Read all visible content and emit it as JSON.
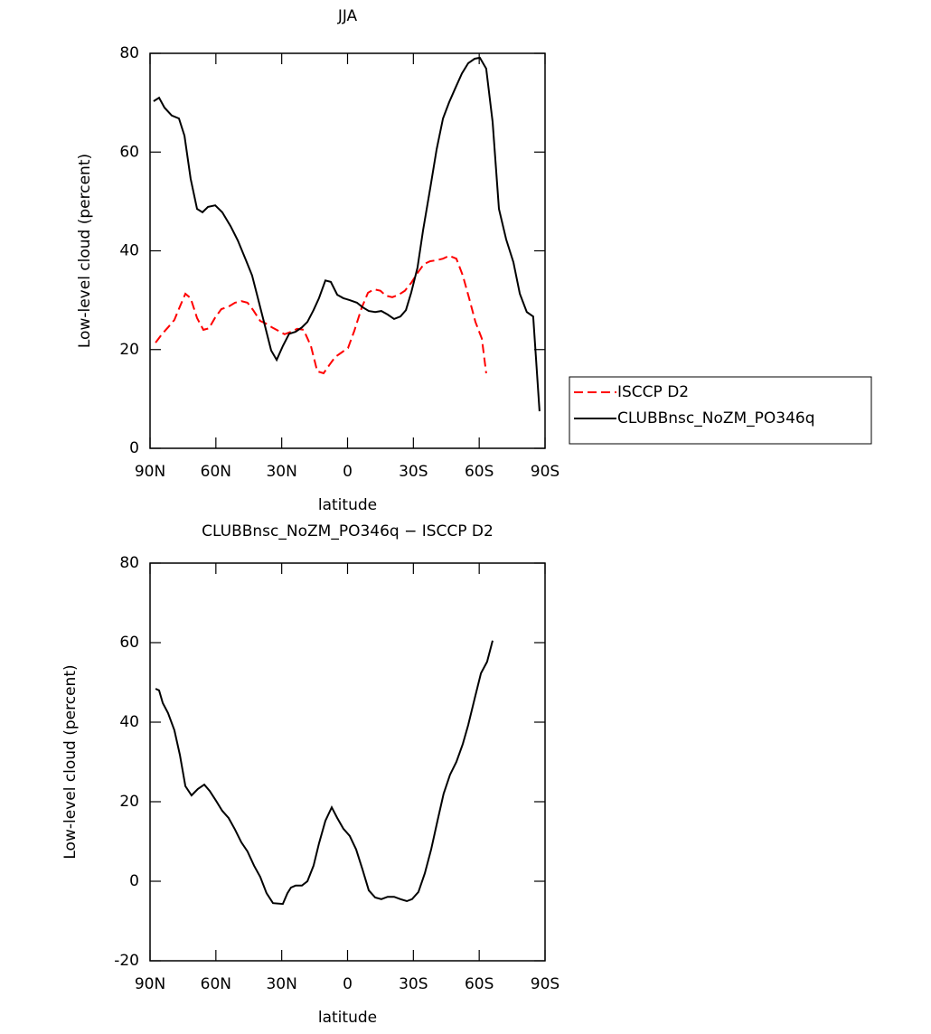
{
  "chart_data": [
    {
      "type": "line",
      "title": "JJA",
      "xlabel": "latitude",
      "ylabel": "Low-level cloud (percent)",
      "xlim": [
        90,
        -90
      ],
      "xticks": [
        {
          "value": 90,
          "label": "90N"
        },
        {
          "value": 60,
          "label": "60N"
        },
        {
          "value": 30,
          "label": "30N"
        },
        0,
        {
          "value": -30,
          "label": "30S"
        },
        {
          "value": -60,
          "label": "60S"
        },
        {
          "value": -90,
          "label": "90S"
        }
      ],
      "ylim": [
        0,
        80
      ],
      "yticks": [
        0,
        20,
        40,
        60,
        80
      ],
      "legend": "right",
      "series": [
        {
          "name": "ISCCP D2",
          "color": "#ff0000",
          "linestyle": "dashed",
          "x": [
            87.5,
            84.6,
            81.8,
            78.9,
            76.4,
            73.9,
            71.5,
            68.6,
            65.7,
            63.2,
            60.3,
            57.5,
            54.2,
            51.3,
            48.4,
            45.6,
            43.0,
            39.8,
            37.3,
            34.4,
            31.5,
            28.7,
            25.8,
            22.9,
            20.0,
            16.7,
            13.8,
            10.9,
            8.4,
            5.6,
            2.7,
            -0.2,
            -3.1,
            -6.4,
            -9.3,
            -12.1,
            -15.0,
            -17.5,
            -20.4,
            -23.3,
            -26.1,
            -29.0,
            -31.9,
            -34.8,
            -37.7,
            -40.6,
            -43.5,
            -46.3,
            -49.6,
            -52.5,
            -55.4,
            -58.3,
            -61.2,
            -63.2
          ],
          "values": [
            21.4,
            23.1,
            24.5,
            26,
            28.7,
            31.3,
            30.4,
            26.4,
            24,
            24.3,
            26.5,
            28.2,
            28.7,
            29.5,
            29.8,
            29.5,
            28,
            25.8,
            25.3,
            24.5,
            23.8,
            23.1,
            23.6,
            24.2,
            24,
            20.7,
            15.6,
            15.2,
            16.8,
            18.5,
            19.4,
            20.3,
            23.8,
            28.4,
            31.5,
            32.2,
            31.9,
            30.9,
            30.6,
            31.1,
            31.9,
            33.5,
            35.5,
            37.3,
            37.9,
            38.1,
            38.4,
            39,
            38.4,
            35,
            30.4,
            25.6,
            22.2,
            15.2
          ]
        },
        {
          "name": "CLUBBnsc_NoZM_PO346q",
          "color": "#000000",
          "linestyle": "solid",
          "x": [
            88.4,
            85.9,
            83.4,
            80.1,
            76.8,
            74.3,
            71.5,
            68.6,
            66.1,
            63.6,
            60.3,
            57.1,
            53.3,
            50.0,
            46.3,
            43.5,
            40.6,
            37.7,
            34.8,
            32.3,
            29.5,
            26.6,
            23.7,
            20.8,
            18.3,
            15.5,
            13.0,
            10.1,
            7.6,
            4.7,
            1.9,
            -1.0,
            -4.3,
            -6.8,
            -9.7,
            -12.6,
            -15.4,
            -18.3,
            -21.2,
            -24.1,
            -26.6,
            -29.0,
            -31.9,
            -34.4,
            -37.7,
            -40.6,
            -43.5,
            -46.3,
            -49.2,
            -52.1,
            -55.0,
            -57.9,
            -60.3,
            -63.2,
            -66.1,
            -69.0,
            -72.3,
            -75.6,
            -78.5,
            -81.7,
            -84.6,
            -87.5
          ],
          "values": [
            70.3,
            71,
            69,
            67.4,
            66.8,
            63.3,
            54.6,
            48.5,
            47.8,
            48.9,
            49.2,
            47.8,
            45,
            42.1,
            38.1,
            35,
            30,
            24.9,
            19.8,
            17.9,
            20.7,
            23.2,
            23.6,
            24.5,
            25.6,
            28,
            30.4,
            34,
            33.7,
            31.1,
            30.4,
            30,
            29.5,
            28.6,
            27.8,
            27.6,
            27.8,
            27.1,
            26.2,
            26.7,
            28,
            31.5,
            36.6,
            44.1,
            52.7,
            60.6,
            66.8,
            70.1,
            73,
            75.9,
            78,
            78.9,
            79.1,
            76.9,
            66.1,
            48.5,
            42.3,
            37.7,
            31.3,
            27.6,
            26.7,
            7.5
          ]
        }
      ]
    },
    {
      "type": "line",
      "title": "CLUBBnsc_NoZM_PO346q − ISCCP D2",
      "xlabel": "latitude",
      "ylabel": "Low-level cloud (percent)",
      "xlim": [
        90,
        -90
      ],
      "xticks": [
        {
          "value": 90,
          "label": "90N"
        },
        {
          "value": 60,
          "label": "60N"
        },
        {
          "value": 30,
          "label": "30N"
        },
        0,
        {
          "value": -30,
          "label": "30S"
        },
        {
          "value": -60,
          "label": "60S"
        },
        {
          "value": -90,
          "label": "90S"
        }
      ],
      "ylim": [
        -20,
        80
      ],
      "yticks": [
        -20,
        0,
        20,
        40,
        60,
        80
      ],
      "series": [
        {
          "color": "#000000",
          "linestyle": "solid",
          "x": [
            87.5,
            85.9,
            84.2,
            81.8,
            78.9,
            76.4,
            73.9,
            71.1,
            68.2,
            65.3,
            62.8,
            59.9,
            57.1,
            54.2,
            51.3,
            48.4,
            45.6,
            42.6,
            39.8,
            36.9,
            34.0,
            29.5,
            27.4,
            25.8,
            23.7,
            20.8,
            18.3,
            15.5,
            13.0,
            10.1,
            7.2,
            4.7,
            1.9,
            -1.0,
            -3.9,
            -6.8,
            -9.7,
            -12.6,
            -15.4,
            -18.3,
            -21.2,
            -24.1,
            -27.0,
            -29.4,
            -32.3,
            -35.2,
            -38.1,
            -41.0,
            -43.8,
            -46.7,
            -49.6,
            -52.5,
            -55.0,
            -57.9,
            -60.8,
            -63.6,
            -66.1
          ],
          "values": [
            48.4,
            48,
            44.8,
            42.3,
            38,
            31.8,
            23.9,
            21.6,
            23.2,
            24.3,
            22.7,
            20.2,
            17.7,
            15.9,
            13,
            9.8,
            7.5,
            3.9,
            1.1,
            -3,
            -5.5,
            -5.7,
            -3,
            -1.6,
            -1.1,
            -1.1,
            0,
            3.9,
            9.5,
            15.2,
            18.6,
            15.9,
            13.2,
            11.4,
            8,
            3,
            -2.3,
            -4.1,
            -4.5,
            -3.9,
            -3.9,
            -4.5,
            -5,
            -4.5,
            -2.7,
            2,
            8,
            15.2,
            22,
            26.8,
            30,
            34.5,
            39.3,
            45.9,
            52.3,
            55.2,
            60.5
          ]
        }
      ]
    }
  ]
}
